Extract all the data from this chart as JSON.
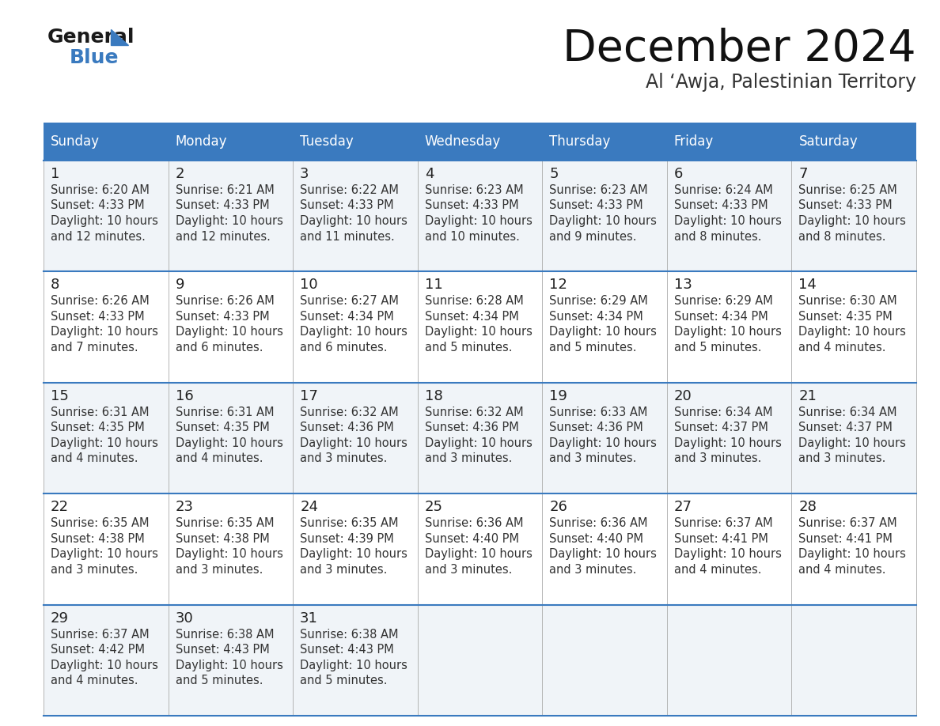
{
  "title": "December 2024",
  "subtitle": "Al ‘Awja, Palestinian Territory",
  "header_color": "#3a7abf",
  "header_text_color": "#ffffff",
  "row_bg_odd": "#f0f4f8",
  "row_bg_even": "#ffffff",
  "day_number_color": "#222222",
  "text_color": "#333333",
  "line_color": "#3a7abf",
  "sep_color": "#aaaaaa",
  "days_of_week": [
    "Sunday",
    "Monday",
    "Tuesday",
    "Wednesday",
    "Thursday",
    "Friday",
    "Saturday"
  ],
  "calendar_data": [
    [
      {
        "day": 1,
        "sunrise": "6:20 AM",
        "sunset": "4:33 PM",
        "daylight_line1": "Daylight: 10 hours",
        "daylight_line2": "and 12 minutes."
      },
      {
        "day": 2,
        "sunrise": "6:21 AM",
        "sunset": "4:33 PM",
        "daylight_line1": "Daylight: 10 hours",
        "daylight_line2": "and 12 minutes."
      },
      {
        "day": 3,
        "sunrise": "6:22 AM",
        "sunset": "4:33 PM",
        "daylight_line1": "Daylight: 10 hours",
        "daylight_line2": "and 11 minutes."
      },
      {
        "day": 4,
        "sunrise": "6:23 AM",
        "sunset": "4:33 PM",
        "daylight_line1": "Daylight: 10 hours",
        "daylight_line2": "and 10 minutes."
      },
      {
        "day": 5,
        "sunrise": "6:23 AM",
        "sunset": "4:33 PM",
        "daylight_line1": "Daylight: 10 hours",
        "daylight_line2": "and 9 minutes."
      },
      {
        "day": 6,
        "sunrise": "6:24 AM",
        "sunset": "4:33 PM",
        "daylight_line1": "Daylight: 10 hours",
        "daylight_line2": "and 8 minutes."
      },
      {
        "day": 7,
        "sunrise": "6:25 AM",
        "sunset": "4:33 PM",
        "daylight_line1": "Daylight: 10 hours",
        "daylight_line2": "and 8 minutes."
      }
    ],
    [
      {
        "day": 8,
        "sunrise": "6:26 AM",
        "sunset": "4:33 PM",
        "daylight_line1": "Daylight: 10 hours",
        "daylight_line2": "and 7 minutes."
      },
      {
        "day": 9,
        "sunrise": "6:26 AM",
        "sunset": "4:33 PM",
        "daylight_line1": "Daylight: 10 hours",
        "daylight_line2": "and 6 minutes."
      },
      {
        "day": 10,
        "sunrise": "6:27 AM",
        "sunset": "4:34 PM",
        "daylight_line1": "Daylight: 10 hours",
        "daylight_line2": "and 6 minutes."
      },
      {
        "day": 11,
        "sunrise": "6:28 AM",
        "sunset": "4:34 PM",
        "daylight_line1": "Daylight: 10 hours",
        "daylight_line2": "and 5 minutes."
      },
      {
        "day": 12,
        "sunrise": "6:29 AM",
        "sunset": "4:34 PM",
        "daylight_line1": "Daylight: 10 hours",
        "daylight_line2": "and 5 minutes."
      },
      {
        "day": 13,
        "sunrise": "6:29 AM",
        "sunset": "4:34 PM",
        "daylight_line1": "Daylight: 10 hours",
        "daylight_line2": "and 5 minutes."
      },
      {
        "day": 14,
        "sunrise": "6:30 AM",
        "sunset": "4:35 PM",
        "daylight_line1": "Daylight: 10 hours",
        "daylight_line2": "and 4 minutes."
      }
    ],
    [
      {
        "day": 15,
        "sunrise": "6:31 AM",
        "sunset": "4:35 PM",
        "daylight_line1": "Daylight: 10 hours",
        "daylight_line2": "and 4 minutes."
      },
      {
        "day": 16,
        "sunrise": "6:31 AM",
        "sunset": "4:35 PM",
        "daylight_line1": "Daylight: 10 hours",
        "daylight_line2": "and 4 minutes."
      },
      {
        "day": 17,
        "sunrise": "6:32 AM",
        "sunset": "4:36 PM",
        "daylight_line1": "Daylight: 10 hours",
        "daylight_line2": "and 3 minutes."
      },
      {
        "day": 18,
        "sunrise": "6:32 AM",
        "sunset": "4:36 PM",
        "daylight_line1": "Daylight: 10 hours",
        "daylight_line2": "and 3 minutes."
      },
      {
        "day": 19,
        "sunrise": "6:33 AM",
        "sunset": "4:36 PM",
        "daylight_line1": "Daylight: 10 hours",
        "daylight_line2": "and 3 minutes."
      },
      {
        "day": 20,
        "sunrise": "6:34 AM",
        "sunset": "4:37 PM",
        "daylight_line1": "Daylight: 10 hours",
        "daylight_line2": "and 3 minutes."
      },
      {
        "day": 21,
        "sunrise": "6:34 AM",
        "sunset": "4:37 PM",
        "daylight_line1": "Daylight: 10 hours",
        "daylight_line2": "and 3 minutes."
      }
    ],
    [
      {
        "day": 22,
        "sunrise": "6:35 AM",
        "sunset": "4:38 PM",
        "daylight_line1": "Daylight: 10 hours",
        "daylight_line2": "and 3 minutes."
      },
      {
        "day": 23,
        "sunrise": "6:35 AM",
        "sunset": "4:38 PM",
        "daylight_line1": "Daylight: 10 hours",
        "daylight_line2": "and 3 minutes."
      },
      {
        "day": 24,
        "sunrise": "6:35 AM",
        "sunset": "4:39 PM",
        "daylight_line1": "Daylight: 10 hours",
        "daylight_line2": "and 3 minutes."
      },
      {
        "day": 25,
        "sunrise": "6:36 AM",
        "sunset": "4:40 PM",
        "daylight_line1": "Daylight: 10 hours",
        "daylight_line2": "and 3 minutes."
      },
      {
        "day": 26,
        "sunrise": "6:36 AM",
        "sunset": "4:40 PM",
        "daylight_line1": "Daylight: 10 hours",
        "daylight_line2": "and 3 minutes."
      },
      {
        "day": 27,
        "sunrise": "6:37 AM",
        "sunset": "4:41 PM",
        "daylight_line1": "Daylight: 10 hours",
        "daylight_line2": "and 4 minutes."
      },
      {
        "day": 28,
        "sunrise": "6:37 AM",
        "sunset": "4:41 PM",
        "daylight_line1": "Daylight: 10 hours",
        "daylight_line2": "and 4 minutes."
      }
    ],
    [
      {
        "day": 29,
        "sunrise": "6:37 AM",
        "sunset": "4:42 PM",
        "daylight_line1": "Daylight: 10 hours",
        "daylight_line2": "and 4 minutes."
      },
      {
        "day": 30,
        "sunrise": "6:38 AM",
        "sunset": "4:43 PM",
        "daylight_line1": "Daylight: 10 hours",
        "daylight_line2": "and 5 minutes."
      },
      {
        "day": 31,
        "sunrise": "6:38 AM",
        "sunset": "4:43 PM",
        "daylight_line1": "Daylight: 10 hours",
        "daylight_line2": "and 5 minutes."
      },
      null,
      null,
      null,
      null
    ]
  ]
}
